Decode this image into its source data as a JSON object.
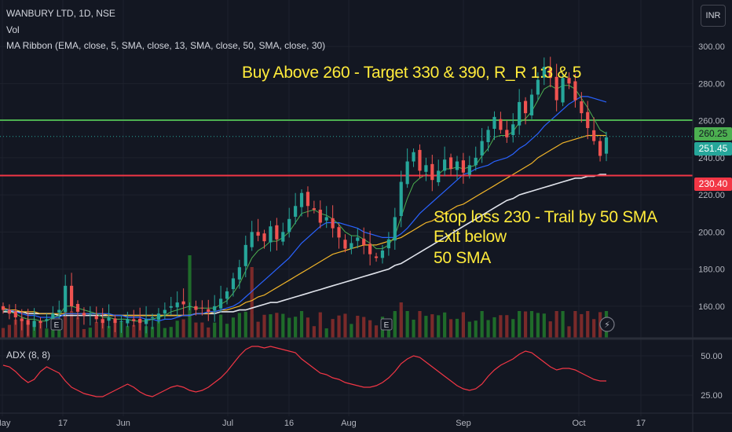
{
  "legend": {
    "symbol": "WANBURY LTD, 1D, NSE",
    "vol": "Vol",
    "ma_ribbon": "MA Ribbon (EMA, close, 5, SMA, close, 13, SMA, close, 50, SMA, close, 30)",
    "adx": "ADX (8, 8)"
  },
  "annotations": {
    "buy": "Buy Above 260 - Target 330 & 390, R_R 1:3 & 5",
    "stop_line1": "Stop loss 230 -  Trail by 50 SMA",
    "stop_line2": "Exit below",
    "stop_line3": "50 SMA"
  },
  "currency": "INR",
  "colors": {
    "background": "#131722",
    "up": "#26a69a",
    "down": "#ef5350",
    "vol_up": "#1f6b2a",
    "vol_down": "#7a2a2a",
    "ema5": "#4caf50",
    "sma13": "#2962ff",
    "sma30": "#f0b429",
    "sma50": "#e0e3eb",
    "level_buy": "#4caf50",
    "level_stop": "#f23645",
    "annotation": "#ffeb3b",
    "adx": "#f23645"
  },
  "chart_data": {
    "type": "candlestick",
    "title": "WANBURY LTD, 1D, NSE",
    "y_axis": {
      "ticks": [
        160,
        180,
        200,
        220,
        240,
        260,
        280,
        300
      ],
      "tick_labels": [
        "160.00",
        "180.00",
        "200.00",
        "220.00",
        "240.00",
        "260.00",
        "280.00",
        "300.00"
      ],
      "range": [
        143,
        325
      ]
    },
    "x_axis": {
      "tick_labels": [
        "May",
        "17",
        "Jun",
        "Jul",
        "16",
        "Aug",
        "Sep",
        "Oct",
        "17"
      ]
    },
    "horizontal_levels": [
      {
        "name": "buy_level",
        "value": 260.25,
        "label": "260.25",
        "color": "#4caf50"
      },
      {
        "name": "stop_level",
        "value": 230.4,
        "label": "230.40",
        "color": "#f23645"
      }
    ],
    "last_price": {
      "value": 251.45,
      "label": "251.45"
    },
    "closes": [
      158,
      156,
      154,
      152,
      150,
      152,
      151,
      153,
      156,
      158,
      171,
      160,
      157,
      155,
      156,
      153,
      151,
      154,
      151,
      152,
      153,
      152,
      151,
      153,
      154,
      156,
      158,
      160,
      162,
      161,
      160,
      158,
      159,
      157,
      160,
      164,
      168,
      175,
      181,
      193,
      200,
      198,
      195,
      203,
      196,
      200,
      207,
      214,
      221,
      214,
      212,
      205,
      208,
      202,
      197,
      191,
      194,
      197,
      193,
      188,
      186,
      190,
      196,
      208,
      227,
      238,
      243,
      233,
      236,
      228,
      233,
      239,
      234,
      238,
      232,
      236,
      240,
      249,
      255,
      262,
      255,
      251,
      258,
      270,
      264,
      274,
      282,
      289,
      283,
      271,
      283,
      280,
      271,
      264,
      256,
      249,
      241,
      251
    ],
    "ema5": [
      158,
      157,
      156,
      154,
      153,
      153,
      152,
      152,
      154,
      155,
      160,
      160,
      159,
      158,
      157,
      156,
      154,
      154,
      153,
      153,
      153,
      152,
      152,
      152,
      153,
      154,
      155,
      157,
      158,
      159,
      160,
      159,
      159,
      159,
      159,
      161,
      163,
      167,
      172,
      179,
      186,
      190,
      192,
      195,
      195,
      197,
      200,
      205,
      210,
      211,
      212,
      210,
      209,
      207,
      204,
      200,
      198,
      198,
      196,
      194,
      191,
      191,
      193,
      198,
      208,
      218,
      226,
      229,
      231,
      230,
      231,
      234,
      234,
      235,
      234,
      235,
      236,
      241,
      245,
      251,
      252,
      252,
      254,
      259,
      261,
      265,
      271,
      277,
      279,
      277,
      279,
      279,
      277,
      272,
      267,
      261,
      255,
      253
    ],
    "sma13": [
      158,
      158,
      157,
      156,
      155,
      155,
      154,
      154,
      154,
      154,
      156,
      156,
      156,
      156,
      156,
      156,
      156,
      156,
      155,
      155,
      154,
      154,
      154,
      153,
      153,
      152,
      153,
      153,
      154,
      155,
      155,
      156,
      156,
      157,
      157,
      158,
      159,
      160,
      162,
      165,
      168,
      171,
      174,
      177,
      180,
      183,
      186,
      190,
      194,
      197,
      200,
      203,
      205,
      205,
      205,
      204,
      203,
      202,
      200,
      199,
      198,
      197,
      197,
      197,
      199,
      202,
      206,
      210,
      213,
      216,
      219,
      222,
      225,
      228,
      231,
      232,
      234,
      235,
      236,
      238,
      239,
      240,
      242,
      245,
      247,
      250,
      253,
      257,
      260,
      263,
      266,
      269,
      271,
      273,
      273,
      272,
      271,
      270
    ],
    "sma30": [
      159,
      158,
      158,
      157,
      157,
      157,
      156,
      156,
      156,
      156,
      156,
      156,
      156,
      156,
      156,
      156,
      156,
      155,
      155,
      155,
      155,
      155,
      155,
      155,
      155,
      155,
      155,
      155,
      155,
      155,
      155,
      156,
      156,
      156,
      157,
      158,
      158,
      159,
      160,
      162,
      163,
      165,
      166,
      168,
      170,
      172,
      174,
      176,
      178,
      180,
      182,
      184,
      186,
      188,
      189,
      190,
      191,
      192,
      193,
      193,
      193,
      194,
      195,
      196,
      197,
      199,
      201,
      203,
      205,
      206,
      208,
      210,
      212,
      214,
      215,
      217,
      219,
      221,
      223,
      225,
      227,
      229,
      231,
      233,
      235,
      237,
      240,
      242,
      244,
      246,
      248,
      249,
      250,
      251,
      252,
      252,
      252,
      252
    ],
    "sma50": [
      157,
      157,
      157,
      157,
      156,
      156,
      156,
      156,
      156,
      155,
      155,
      155,
      155,
      155,
      155,
      155,
      155,
      155,
      155,
      155,
      155,
      155,
      155,
      155,
      155,
      155,
      155,
      155,
      155,
      155,
      155,
      156,
      156,
      156,
      156,
      157,
      157,
      157,
      158,
      158,
      159,
      160,
      161,
      162,
      162,
      163,
      164,
      165,
      166,
      167,
      168,
      169,
      170,
      171,
      172,
      173,
      174,
      175,
      176,
      177,
      178,
      179,
      180,
      182,
      183,
      185,
      187,
      189,
      191,
      193,
      195,
      197,
      199,
      201,
      203,
      205,
      207,
      209,
      211,
      213,
      215,
      217,
      218,
      220,
      221,
      222,
      223,
      224,
      225,
      226,
      227,
      228,
      229,
      229,
      230,
      230,
      231,
      231
    ],
    "adx_axis": {
      "ticks": [
        25,
        50
      ],
      "tick_labels": [
        "25.00",
        "50.00"
      ],
      "range": [
        15,
        60
      ]
    },
    "adx": [
      44,
      43,
      40,
      36,
      33,
      35,
      40,
      43,
      41,
      39,
      34,
      30,
      28,
      26,
      25,
      24,
      24,
      26,
      28,
      30,
      32,
      30,
      27,
      25,
      24,
      26,
      28,
      30,
      31,
      30,
      28,
      27,
      28,
      30,
      33,
      36,
      40,
      45,
      50,
      54,
      56,
      56,
      55,
      56,
      55,
      54,
      53,
      52,
      48,
      45,
      42,
      39,
      38,
      36,
      35,
      33,
      32,
      31,
      30,
      30,
      31,
      33,
      36,
      40,
      45,
      48,
      50,
      49,
      46,
      43,
      40,
      37,
      34,
      31,
      29,
      28,
      29,
      32,
      37,
      41,
      44,
      46,
      48,
      51,
      53,
      52,
      49,
      46,
      43,
      41,
      42,
      42,
      41,
      39,
      37,
      35,
      34,
      34
    ]
  }
}
